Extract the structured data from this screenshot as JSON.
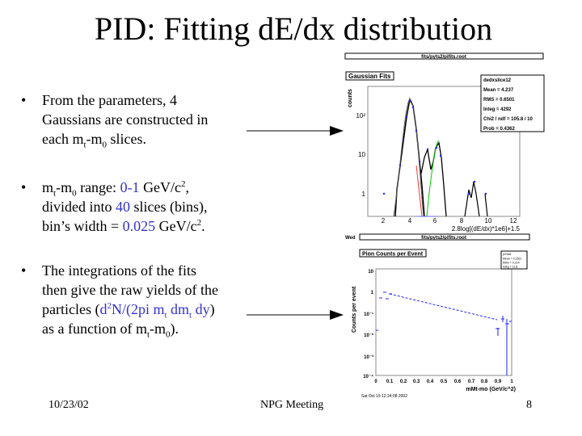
{
  "title": "PID: Fitting dE/dx distribution",
  "bullets": [
    {
      "l1": "From the parameters, 4",
      "l2": "Gaussians are constructed in",
      "l3a": "each m",
      "l3sub": "t",
      "l3b": "-m",
      "l3sub2": "0",
      "l3c": " slices."
    },
    {
      "l1a": "m",
      "l1sub": "t",
      "l1b": "-m",
      "l1sub2": "0",
      "l1c": " range: ",
      "l1blue": "0-1",
      "l1d": " GeV/c",
      "l1sup": "2",
      "l1e": ",",
      "l2a": "divided into ",
      "l2blue": "40",
      "l2b": " slices (bins),",
      "l3a": "bin’s width = ",
      "l3blue": "0.025",
      "l3b": " GeV/c",
      "l3sup": "2",
      "l3c": "."
    },
    {
      "l1": "The integrations of the fits",
      "l2": "then give the raw yields of the",
      "l3a": "particles (",
      "l3blue1": "d",
      "l3sup": "2",
      "l3blue2": "N/(2pi m",
      "l3sub": "t",
      "l3blue3": " dm",
      "l3sub2": "t",
      "l3blue4": " dy",
      "l3b": ")",
      "l4a": "as a function of m",
      "l4sub": "t",
      "l4b": "-m",
      "l4sub2": "0",
      "l4c": ")."
    }
  ],
  "bullet_symbol": "•",
  "plot1": {
    "file_top": "fits/pyts2/pifits.root",
    "title": "Gaussian Fits",
    "stats": {
      "name": "dedxslice12",
      "mean": "Mean  =  4.237",
      "rms": "RMS   = 0.6501",
      "integ": "Integ =    4292",
      "chi2": "Chi2 / ndf = 105.8 / 10",
      "prob": "Prob  = 0.4362"
    },
    "ylabel": "counts",
    "yticks": [
      "10²",
      "10",
      "1"
    ],
    "xticks": [
      "2",
      "4",
      "6",
      "8",
      "10",
      "12"
    ],
    "xlabel": "2.8log[(dE/dx)*1e6]+1.5",
    "bottom_left": "Wed",
    "file_bottom": "fits/pyts2/pifits.root"
  },
  "plot2": {
    "title": "Pion Counts per Event",
    "stats": {
      "name": "piYield",
      "mean": "Mean  = 0.2521",
      "rms": "RMS   = 0.214",
      "integ": "Integ =  11.8"
    },
    "ylabel": "Counts per event",
    "yticks": [
      "10",
      "1",
      "10⁻¹",
      "10⁻²",
      "10⁻³",
      "10⁻⁴"
    ],
    "xticks": [
      "0",
      "0.1",
      "0.2",
      "0.3",
      "0.4",
      "0.5",
      "0.6",
      "0.7",
      "0.8",
      "0.9",
      "1"
    ],
    "xlabel": "mMt-mo (GeV/c^2)",
    "date": "Sat Oct 19 12:24:08 2002"
  },
  "footer": {
    "date": "10/23/02",
    "event": "NPG Meeting",
    "page": "8"
  },
  "colors": {
    "accent": "#3333cc",
    "fit_red": "#ff3333",
    "fit_green": "#00cc00",
    "points": "#2222ff"
  }
}
